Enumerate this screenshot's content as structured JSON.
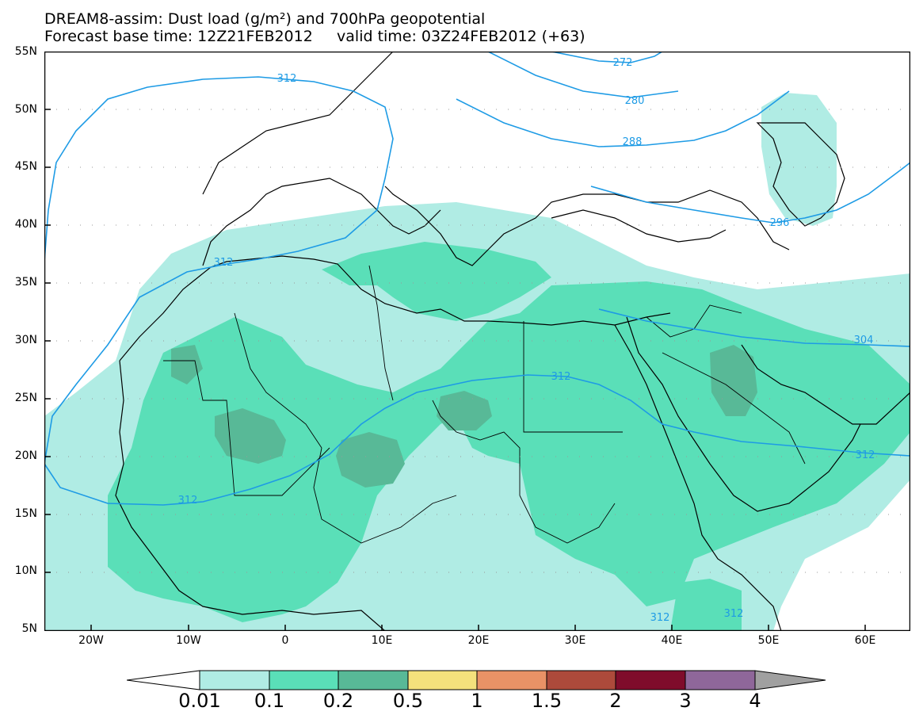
{
  "title": {
    "line1": "DREAM8-assim: Dust load (g/m²) and 700hPa geopotential",
    "line2": "Forecast base time: 12Z21FEB2012     valid time: 03Z24FEB2012 (+63)"
  },
  "axes": {
    "lat_labels": [
      "55N",
      "50N",
      "45N",
      "40N",
      "35N",
      "30N",
      "25N",
      "20N",
      "15N",
      "10N",
      "5N"
    ],
    "lon_labels": [
      "20W",
      "10W",
      "0",
      "10E",
      "20E",
      "30E",
      "40E",
      "50E",
      "60E"
    ]
  },
  "contour_labels": [
    {
      "text": "272",
      "name": "contour-label-272"
    },
    {
      "text": "280",
      "name": "contour-label-280"
    },
    {
      "text": "288",
      "name": "contour-label-288"
    },
    {
      "text": "296",
      "name": "contour-label-296"
    },
    {
      "text": "304",
      "name": "contour-label-304"
    },
    {
      "text": "312",
      "name": "contour-label-312"
    }
  ],
  "colorbar": {
    "levels": [
      "0.01",
      "0.1",
      "0.2",
      "0.5",
      "1",
      "1.5",
      "2",
      "3",
      "4"
    ],
    "colors": [
      "#b0ece4",
      "#5adfb8",
      "#58b997",
      "#f4e17c",
      "#e99266",
      "#ad4a3b",
      "#7f0c2b",
      "#8f679a"
    ],
    "over_color": "#a0a0a0",
    "under_color": "#ffffff"
  },
  "colors": {
    "contour_line": "#1e9be5",
    "frame": "#000000",
    "coastline": "#000000"
  }
}
